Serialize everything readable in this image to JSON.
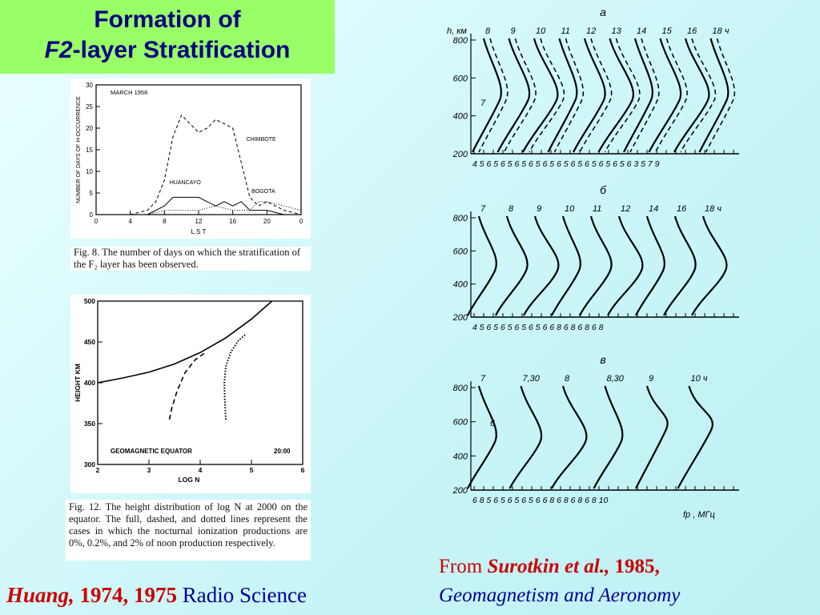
{
  "title": {
    "line1": "Formation of",
    "line2_italic": "F2",
    "line2_rest": "-layer Stratification"
  },
  "fig8": {
    "ylabel": "NUMBER OF DAYS OF H-OCCURRENCE",
    "xlabel": "L S T",
    "month": "MARCH 1958",
    "labels": {
      "chimbote": "CHIMBOTE",
      "huancayo": "HUANCAYO",
      "bogota": "BOGOTA"
    },
    "yticks": [
      "0",
      "5",
      "10",
      "15",
      "20",
      "25",
      "30"
    ],
    "xticks": [
      "0",
      "4",
      "8",
      "12",
      "16",
      "20",
      "0"
    ],
    "caption": "Fig. 8.   The number of days on which the stratification of the F₂ layer has been observed."
  },
  "fig12": {
    "ylabel": "HEIGHT  KM",
    "xlabel": "LOG N",
    "yticks": [
      "300",
      "350",
      "400",
      "450",
      "500"
    ],
    "xticks": [
      "2",
      "3",
      "4",
      "5",
      "6"
    ],
    "label_left": "GEOMAGNETIC EQUATOR",
    "label_right": "20:00",
    "caption": "Fig. 12.   The height distribution of log N at 2000 on the equator. The full, dashed, and dotted lines represent the cases in which the nocturnal ionization productions are 0%, 0.2%, and 2% of noon production respectively."
  },
  "chart_data": [
    {
      "type": "line",
      "title": "MARCH 1958",
      "xlabel": "L S T",
      "ylabel": "NUMBER OF DAYS OF H-OCCURRENCE",
      "xlim": [
        0,
        24
      ],
      "ylim": [
        0,
        30
      ],
      "series": [
        {
          "name": "CHIMBOTE",
          "x": [
            4,
            6,
            7,
            8,
            9,
            10,
            11,
            12,
            13,
            14,
            15,
            16,
            17,
            18,
            19,
            20,
            21,
            22,
            24
          ],
          "y": [
            0,
            1,
            3,
            8,
            18,
            23,
            21,
            19,
            20,
            22,
            21,
            20,
            12,
            4,
            2,
            3,
            2,
            1,
            0
          ]
        },
        {
          "name": "HUANCAYO",
          "x": [
            4,
            6,
            8,
            9,
            10,
            11,
            12,
            13,
            14,
            15,
            16,
            17,
            18,
            20,
            22,
            24
          ],
          "y": [
            0,
            0,
            2,
            4,
            4,
            4,
            4,
            3,
            2,
            3,
            2,
            3,
            1,
            1,
            0,
            0
          ]
        },
        {
          "name": "BOGOTA",
          "x": [
            6,
            8,
            10,
            12,
            14,
            16,
            18,
            19,
            20,
            22,
            24
          ],
          "y": [
            0,
            1,
            1,
            1,
            2,
            1,
            1,
            3,
            3,
            2,
            1
          ]
        }
      ]
    },
    {
      "type": "line",
      "title": "",
      "xlabel": "LOG N",
      "ylabel": "HEIGHT KM",
      "xlim": [
        2,
        6
      ],
      "ylim": [
        300,
        500
      ],
      "series": [
        {
          "name": "0%",
          "x": [
            2,
            2.5,
            3,
            3.5,
            4,
            4.5,
            5,
            5.4
          ],
          "y": [
            400,
            406,
            413,
            423,
            437,
            455,
            478,
            500
          ]
        },
        {
          "name": "0.2%",
          "x": [
            3.4,
            3.45,
            3.55,
            3.7,
            3.9,
            4.1
          ],
          "y": [
            355,
            370,
            390,
            412,
            428,
            437
          ]
        },
        {
          "name": "2%",
          "x": [
            4.5,
            4.48,
            4.47,
            4.5,
            4.6,
            4.75,
            4.9
          ],
          "y": [
            355,
            380,
            400,
            420,
            438,
            452,
            460
          ]
        }
      ]
    }
  ],
  "russian": {
    "ylabel": "h, км",
    "panel_a": "а",
    "panel_b": "б",
    "panel_v": "в",
    "a_times": [
      "8",
      "9",
      "10",
      "11",
      "12",
      "13",
      "14",
      "15",
      "16",
      "18 ч"
    ],
    "a_extra": "7",
    "a_yticks": [
      "200",
      "400",
      "600",
      "800"
    ],
    "a_xticks": "4 5 6 5 6 5 6 5 6 5 6 5 6 5 6 5 6 5 6 5 6 5 6 3   5   7   9",
    "b_times": [
      "7",
      "8",
      "9",
      "10",
      "11",
      "12",
      "14",
      "16",
      "18 ч"
    ],
    "b_yticks": [
      "200",
      "400",
      "600",
      "800"
    ],
    "b_xticks": "4 5 6 5 6 5 6 5 6 5 6    6   8   6   8   6   8   6   8",
    "v_times": [
      "7",
      "7,30",
      "8",
      "8,30",
      "9",
      "10 ч"
    ],
    "v_extra": "6",
    "v_yticks": [
      "200",
      "400",
      "600",
      "800"
    ],
    "v_xticks": "6   8 5 6 5 6 5 6 5 6   6   8   6   8   6   8   6   8   10",
    "v_xunit": "fp , МГц"
  },
  "credit_left": {
    "author": "Huang,",
    "years": "1974, 1975",
    "journal": "Radio Science"
  },
  "credit_right": {
    "from": "From",
    "author": "Surotkin et al.,",
    "year": "1985,",
    "journal": "Geomagnetism and Aeronomy"
  }
}
